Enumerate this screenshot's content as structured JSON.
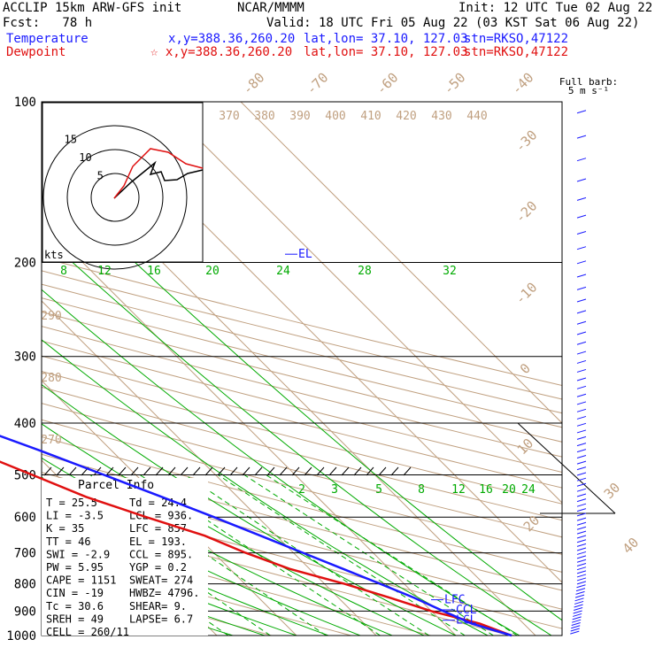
{
  "header": {
    "model": "ACCLIP 15km ARW-GFS init",
    "forecast": "Fcst:   78 h",
    "org": "NCAR/MMMM",
    "init": "Init: 12 UTC Tue 02 Aug 22",
    "valid": "Valid: 18 UTC Fri 05 Aug 22 (03 KST Sat 06 Aug 22)",
    "temp_line": {
      "label": "Temperature",
      "xy": "x,y=388.36,260.20",
      "latlon": "lat,lon= 37.10, 127.03",
      "stn": "stn=RKSO,47122"
    },
    "dew_line": {
      "label": "Dewpoint",
      "xy": "☆ x,y=388.36,260.20",
      "latlon": "lat,lon= 37.10, 127.03",
      "stn": "stn=RKSO,47122"
    }
  },
  "parcel_info": {
    "title": "Parcel Info",
    "rows": [
      [
        "T   =    25.5",
        "Td  =  24.4"
      ],
      [
        "LI  =    -3.5",
        "LCL =  936."
      ],
      [
        "K   =      35",
        "LFC =  857."
      ],
      [
        "TT  =      46",
        "EL  =  193."
      ],
      [
        "SWI =    -2.9",
        "CCL =  895."
      ],
      [
        "PW  =    5.95",
        "YGP =   0.2"
      ],
      [
        "CAPE =   1151",
        "SWEAT=  274"
      ],
      [
        "CIN  =    -19",
        "HWBZ= 4796."
      ],
      [
        "Tc   =   30.6",
        "SHEAR=   9."
      ],
      [
        "SREH =     49",
        "LAPSE=  6.7"
      ],
      [
        "CELL = 260/11",
        ""
      ]
    ]
  },
  "barb_legend": {
    "title": "Full barb:",
    "value": "5 m s⁻¹"
  },
  "hodograph": {
    "unit": "kts",
    "ring_labels": [
      "5",
      "10",
      "15"
    ]
  },
  "chart_data": {
    "type": "line",
    "subtype": "skew-T log-P sounding",
    "y_label_ticks": [
      "100",
      "200",
      "300",
      "400",
      "500",
      "600",
      "700",
      "800",
      "900",
      "1000"
    ],
    "isotherm_labels": [
      "-80",
      "-70",
      "-60",
      "-50",
      "-40",
      "-30",
      "-20",
      "-10",
      "0",
      "10",
      "20",
      "30",
      "40"
    ],
    "theta_labels": [
      "370",
      "380",
      "390",
      "400",
      "410",
      "420",
      "430",
      "440"
    ],
    "theta_side_labels": [
      "290",
      "280",
      "270"
    ],
    "mixing_labels_upper": [
      "8",
      "12",
      "16",
      "20",
      "24",
      "28",
      "32"
    ],
    "mixing_labels_lower": [
      "2",
      "3",
      "5",
      "8",
      "12",
      "16",
      "20",
      "24"
    ],
    "level_labels": [
      "EL",
      "LFC",
      "CCL",
      "LCL"
    ],
    "colors": {
      "temperature": "#e01010",
      "dewpoint": "#e01010",
      "parcel": "#1a1aff",
      "isotherm": "#c0a080",
      "mixing": "#00aa00",
      "grid": "#000000"
    },
    "series": [
      {
        "name": "Temperature",
        "points": [
          [
            1000,
            27.0
          ],
          [
            950,
            24.5
          ],
          [
            900,
            20.0
          ],
          [
            850,
            16.5
          ],
          [
            800,
            12.5
          ],
          [
            750,
            7.5
          ],
          [
            700,
            4.0
          ],
          [
            650,
            1.0
          ],
          [
            600,
            -4.0
          ],
          [
            550,
            -9.0
          ],
          [
            500,
            -13.0
          ],
          [
            450,
            -17.5
          ],
          [
            400,
            -24.0
          ],
          [
            350,
            -32.0
          ],
          [
            300,
            -40.0
          ],
          [
            250,
            -50.0
          ],
          [
            200,
            -58.0
          ],
          [
            175,
            -64.0
          ],
          [
            150,
            -72.0
          ],
          [
            125,
            -78.0
          ],
          [
            100,
            -77.0
          ]
        ]
      },
      {
        "name": "Parcel",
        "points": [
          [
            1000,
            27.0
          ],
          [
            950,
            23.5
          ],
          [
            900,
            21.5
          ],
          [
            850,
            19.5
          ],
          [
            800,
            17.0
          ],
          [
            750,
            14.2
          ],
          [
            700,
            11.2
          ],
          [
            650,
            8.0
          ],
          [
            600,
            4.5
          ],
          [
            550,
            0.5
          ],
          [
            500,
            -4.0
          ],
          [
            450,
            -9.0
          ],
          [
            400,
            -15.0
          ],
          [
            350,
            -22.0
          ],
          [
            300,
            -30.5
          ],
          [
            250,
            -41.0
          ],
          [
            200,
            -54.5
          ],
          [
            175,
            -61.0
          ],
          [
            150,
            -66.0
          ],
          [
            125,
            -73.0
          ],
          [
            100,
            -81.0
          ]
        ]
      }
    ],
    "xlim": [
      -40,
      50
    ],
    "ylim": [
      1000,
      100
    ]
  }
}
